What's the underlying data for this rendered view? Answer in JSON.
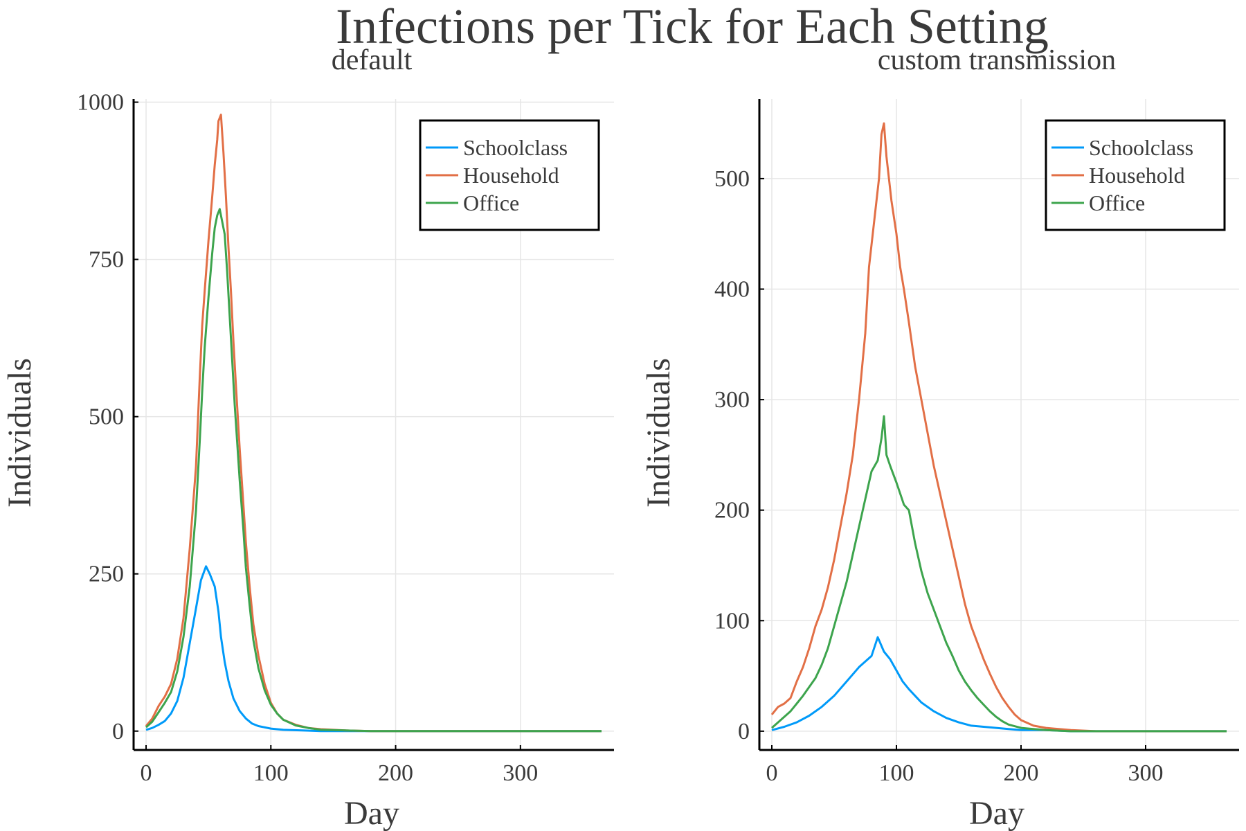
{
  "figure": {
    "title": "Infections per Tick for Each Setting"
  },
  "chart_data": [
    {
      "type": "line",
      "title": "default",
      "xlabel": "Day",
      "ylabel": "Individuals",
      "xlim": [
        -10,
        375
      ],
      "ylim": [
        -30,
        1005
      ],
      "xticks": [
        0,
        100,
        200,
        300
      ],
      "yticks": [
        0,
        250,
        500,
        750,
        1000
      ],
      "grid": true,
      "legend": "top-right",
      "series": [
        {
          "name": "Schoolclass",
          "color": "#009af9",
          "points": [
            [
              0,
              2
            ],
            [
              5,
              5
            ],
            [
              10,
              10
            ],
            [
              15,
              16
            ],
            [
              20,
              28
            ],
            [
              25,
              48
            ],
            [
              30,
              85
            ],
            [
              35,
              140
            ],
            [
              40,
              195
            ],
            [
              44,
              240
            ],
            [
              48,
              262
            ],
            [
              51,
              250
            ],
            [
              55,
              230
            ],
            [
              58,
              190
            ],
            [
              60,
              150
            ],
            [
              63,
              110
            ],
            [
              66,
              80
            ],
            [
              70,
              52
            ],
            [
              75,
              32
            ],
            [
              80,
              20
            ],
            [
              85,
              12
            ],
            [
              90,
              8
            ],
            [
              100,
              4
            ],
            [
              110,
              2
            ],
            [
              125,
              1
            ],
            [
              140,
              0
            ],
            [
              160,
              0
            ],
            [
              365,
              0
            ]
          ]
        },
        {
          "name": "Household",
          "color": "#e26f46",
          "points": [
            [
              0,
              8
            ],
            [
              5,
              20
            ],
            [
              10,
              40
            ],
            [
              15,
              55
            ],
            [
              20,
              75
            ],
            [
              25,
              115
            ],
            [
              30,
              180
            ],
            [
              35,
              290
            ],
            [
              40,
              420
            ],
            [
              43,
              560
            ],
            [
              45,
              645
            ],
            [
              47,
              700
            ],
            [
              50,
              780
            ],
            [
              53,
              850
            ],
            [
              55,
              900
            ],
            [
              57,
              940
            ],
            [
              58,
              970
            ],
            [
              60,
              980
            ],
            [
              62,
              920
            ],
            [
              64,
              850
            ],
            [
              66,
              770
            ],
            [
              68,
              700
            ],
            [
              70,
              620
            ],
            [
              72,
              550
            ],
            [
              75,
              450
            ],
            [
              78,
              360
            ],
            [
              80,
              300
            ],
            [
              83,
              230
            ],
            [
              86,
              170
            ],
            [
              90,
              120
            ],
            [
              95,
              75
            ],
            [
              100,
              45
            ],
            [
              105,
              28
            ],
            [
              110,
              18
            ],
            [
              120,
              10
            ],
            [
              130,
              5
            ],
            [
              140,
              3
            ],
            [
              160,
              1
            ],
            [
              180,
              0
            ],
            [
              365,
              0
            ]
          ]
        },
        {
          "name": "Office",
          "color": "#3da44d",
          "points": [
            [
              0,
              6
            ],
            [
              5,
              15
            ],
            [
              10,
              30
            ],
            [
              15,
              45
            ],
            [
              20,
              62
            ],
            [
              25,
              95
            ],
            [
              30,
              150
            ],
            [
              35,
              230
            ],
            [
              40,
              350
            ],
            [
              43,
              460
            ],
            [
              45,
              540
            ],
            [
              47,
              610
            ],
            [
              50,
              690
            ],
            [
              53,
              760
            ],
            [
              55,
              800
            ],
            [
              57,
              820
            ],
            [
              59,
              830
            ],
            [
              61,
              810
            ],
            [
              63,
              790
            ],
            [
              65,
              730
            ],
            [
              67,
              660
            ],
            [
              69,
              590
            ],
            [
              71,
              520
            ],
            [
              73,
              460
            ],
            [
              75,
              400
            ],
            [
              78,
              320
            ],
            [
              80,
              260
            ],
            [
              83,
              200
            ],
            [
              86,
              145
            ],
            [
              90,
              100
            ],
            [
              95,
              65
            ],
            [
              100,
              42
            ],
            [
              105,
              28
            ],
            [
              110,
              18
            ],
            [
              120,
              9
            ],
            [
              130,
              5
            ],
            [
              140,
              2
            ],
            [
              160,
              1
            ],
            [
              180,
              0
            ],
            [
              365,
              0
            ]
          ]
        }
      ]
    },
    {
      "type": "line",
      "title": "custom transmission",
      "xlabel": "Day",
      "ylabel": "Individuals",
      "xlim": [
        -10,
        375
      ],
      "ylim": [
        -17,
        572
      ],
      "xticks": [
        0,
        100,
        200,
        300
      ],
      "yticks": [
        0,
        100,
        200,
        300,
        400,
        500
      ],
      "grid": true,
      "legend": "top-right",
      "series": [
        {
          "name": "Schoolclass",
          "color": "#009af9",
          "points": [
            [
              0,
              1
            ],
            [
              10,
              4
            ],
            [
              20,
              8
            ],
            [
              30,
              14
            ],
            [
              40,
              22
            ],
            [
              50,
              32
            ],
            [
              60,
              45
            ],
            [
              70,
              58
            ],
            [
              80,
              68
            ],
            [
              85,
              85
            ],
            [
              90,
              72
            ],
            [
              95,
              65
            ],
            [
              100,
              55
            ],
            [
              105,
              45
            ],
            [
              110,
              38
            ],
            [
              115,
              32
            ],
            [
              120,
              26
            ],
            [
              130,
              18
            ],
            [
              140,
              12
            ],
            [
              150,
              8
            ],
            [
              160,
              5
            ],
            [
              170,
              4
            ],
            [
              180,
              3
            ],
            [
              190,
              2
            ],
            [
              200,
              1
            ],
            [
              220,
              1
            ],
            [
              240,
              0
            ],
            [
              365,
              0
            ]
          ]
        },
        {
          "name": "Household",
          "color": "#e26f46",
          "points": [
            [
              0,
              15
            ],
            [
              5,
              22
            ],
            [
              10,
              25
            ],
            [
              15,
              30
            ],
            [
              20,
              45
            ],
            [
              25,
              58
            ],
            [
              30,
              75
            ],
            [
              35,
              95
            ],
            [
              40,
              110
            ],
            [
              45,
              130
            ],
            [
              50,
              155
            ],
            [
              55,
              185
            ],
            [
              60,
              215
            ],
            [
              65,
              250
            ],
            [
              70,
              300
            ],
            [
              75,
              360
            ],
            [
              78,
              420
            ],
            [
              80,
              440
            ],
            [
              83,
              470
            ],
            [
              86,
              500
            ],
            [
              88,
              540
            ],
            [
              90,
              550
            ],
            [
              92,
              520
            ],
            [
              94,
              500
            ],
            [
              96,
              480
            ],
            [
              100,
              450
            ],
            [
              103,
              420
            ],
            [
              106,
              400
            ],
            [
              110,
              370
            ],
            [
              115,
              330
            ],
            [
              120,
              300
            ],
            [
              125,
              270
            ],
            [
              130,
              240
            ],
            [
              135,
              215
            ],
            [
              140,
              190
            ],
            [
              145,
              165
            ],
            [
              150,
              140
            ],
            [
              155,
              115
            ],
            [
              160,
              95
            ],
            [
              165,
              80
            ],
            [
              170,
              65
            ],
            [
              175,
              52
            ],
            [
              180,
              40
            ],
            [
              185,
              30
            ],
            [
              190,
              22
            ],
            [
              195,
              15
            ],
            [
              200,
              10
            ],
            [
              210,
              5
            ],
            [
              220,
              3
            ],
            [
              240,
              1
            ],
            [
              260,
              0
            ],
            [
              365,
              0
            ]
          ]
        },
        {
          "name": "Office",
          "color": "#3da44d",
          "points": [
            [
              0,
              3
            ],
            [
              5,
              8
            ],
            [
              10,
              13
            ],
            [
              15,
              18
            ],
            [
              20,
              25
            ],
            [
              25,
              32
            ],
            [
              30,
              40
            ],
            [
              35,
              48
            ],
            [
              40,
              60
            ],
            [
              45,
              75
            ],
            [
              50,
              95
            ],
            [
              55,
              115
            ],
            [
              60,
              135
            ],
            [
              65,
              160
            ],
            [
              70,
              185
            ],
            [
              75,
              210
            ],
            [
              80,
              235
            ],
            [
              85,
              245
            ],
            [
              88,
              265
            ],
            [
              90,
              285
            ],
            [
              92,
              250
            ],
            [
              95,
              240
            ],
            [
              100,
              225
            ],
            [
              103,
              215
            ],
            [
              106,
              205
            ],
            [
              110,
              200
            ],
            [
              115,
              170
            ],
            [
              120,
              145
            ],
            [
              125,
              125
            ],
            [
              130,
              110
            ],
            [
              135,
              95
            ],
            [
              140,
              80
            ],
            [
              145,
              68
            ],
            [
              150,
              55
            ],
            [
              155,
              45
            ],
            [
              160,
              37
            ],
            [
              165,
              30
            ],
            [
              170,
              24
            ],
            [
              175,
              18
            ],
            [
              180,
              13
            ],
            [
              185,
              9
            ],
            [
              190,
              6
            ],
            [
              200,
              3
            ],
            [
              210,
              2
            ],
            [
              220,
              1
            ],
            [
              240,
              0
            ],
            [
              365,
              0
            ]
          ]
        }
      ]
    }
  ]
}
